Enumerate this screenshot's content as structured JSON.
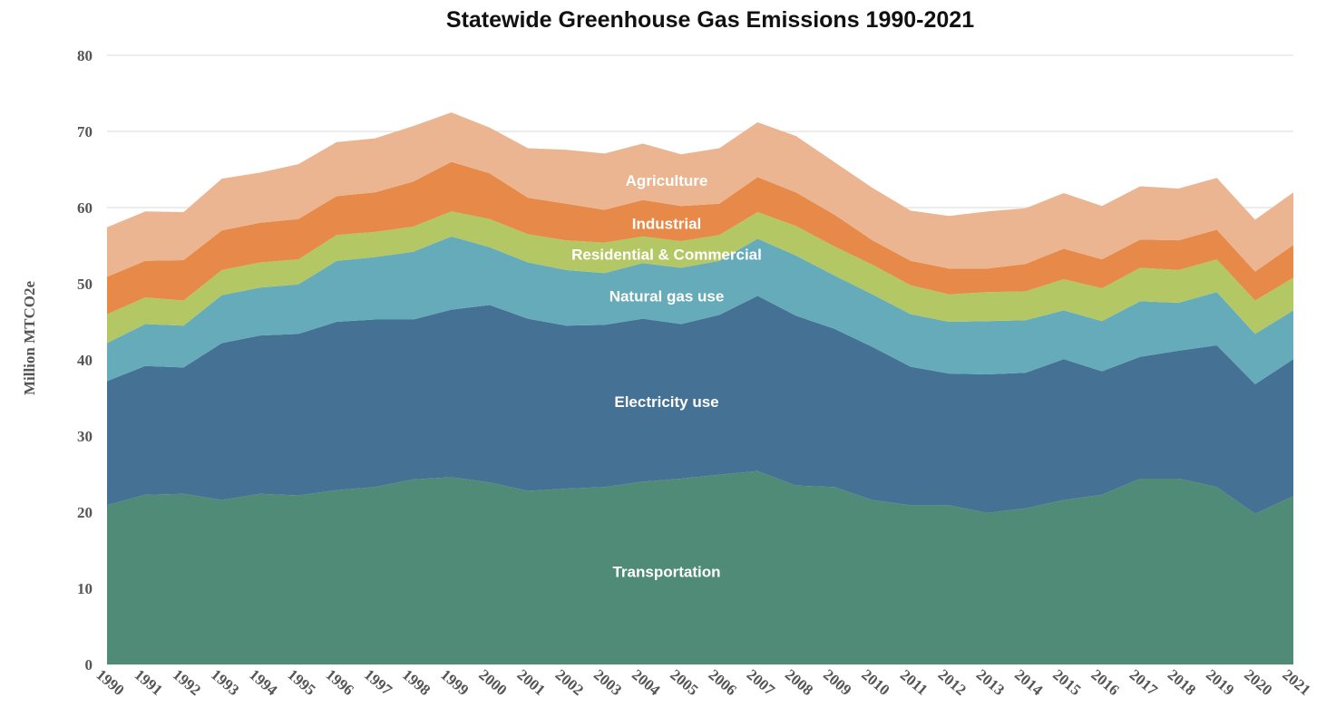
{
  "chart_data": {
    "type": "area",
    "stacked": true,
    "title": "Statewide Greenhouse Gas Emissions 1990-2021",
    "xlabel": "",
    "ylabel": "Million  MTCO2e",
    "ylim": [
      0,
      80
    ],
    "yticks": [
      0,
      10,
      20,
      30,
      40,
      50,
      60,
      70,
      80
    ],
    "grid": true,
    "legend": "none",
    "x": [
      "1990",
      "1991",
      "1992",
      "1993",
      "1994",
      "1995",
      "1996",
      "1997",
      "1998",
      "1999",
      "2000",
      "2001",
      "2002",
      "2003",
      "2004",
      "2005",
      "2006",
      "2007",
      "2008",
      "2009",
      "2010",
      "2011",
      "2012",
      "2013",
      "2014",
      "2015",
      "2016",
      "2017",
      "2018",
      "2019",
      "2020",
      "2021"
    ],
    "series": [
      {
        "name": "Transportation",
        "color": "#4f8b77",
        "values": [
          20.9,
          22.3,
          22.4,
          21.6,
          22.4,
          22.2,
          22.9,
          23.3,
          24.3,
          24.6,
          23.9,
          22.8,
          23.1,
          23.3,
          24.0,
          24.4,
          24.9,
          25.4,
          23.5,
          23.3,
          21.6,
          20.9,
          20.9,
          19.9,
          20.5,
          21.6,
          22.3,
          24.4,
          24.4,
          23.3,
          19.8,
          22.1
        ]
      },
      {
        "name": "Electricity use",
        "color": "#447194",
        "values": [
          16.3,
          16.9,
          16.6,
          20.6,
          20.8,
          21.2,
          22.1,
          22.0,
          21.0,
          22.0,
          23.3,
          22.6,
          21.4,
          21.3,
          21.4,
          20.3,
          21.0,
          23.0,
          22.3,
          20.8,
          20.1,
          18.2,
          17.3,
          18.2,
          17.8,
          18.5,
          16.2,
          16.0,
          16.8,
          18.6,
          17.0,
          18.0
        ]
      },
      {
        "name": "Natural gas use",
        "color": "#65abb9",
        "values": [
          5.0,
          5.5,
          5.5,
          6.3,
          6.3,
          6.5,
          8.0,
          8.2,
          8.9,
          9.6,
          7.6,
          7.4,
          7.3,
          6.8,
          7.3,
          7.4,
          7.1,
          7.5,
          7.9,
          7.0,
          6.9,
          6.9,
          6.8,
          7.0,
          6.9,
          6.4,
          6.6,
          7.3,
          6.3,
          7.0,
          6.6,
          6.4
        ]
      },
      {
        "name": "Residential & Commercial",
        "color": "#b3c864",
        "values": [
          3.8,
          3.5,
          3.3,
          3.3,
          3.3,
          3.3,
          3.4,
          3.3,
          3.3,
          3.3,
          3.7,
          3.7,
          3.9,
          4.0,
          3.5,
          3.5,
          3.4,
          3.5,
          3.9,
          3.8,
          3.9,
          3.8,
          3.6,
          3.8,
          3.8,
          4.1,
          4.3,
          4.4,
          4.3,
          4.3,
          4.4,
          4.3
        ]
      },
      {
        "name": "Industrial",
        "color": "#e68949",
        "values": [
          4.9,
          4.8,
          5.3,
          5.2,
          5.2,
          5.3,
          5.1,
          5.2,
          5.9,
          6.5,
          6.0,
          4.8,
          4.8,
          4.3,
          4.8,
          4.6,
          4.1,
          4.6,
          4.4,
          4.2,
          3.2,
          3.2,
          3.4,
          3.1,
          3.6,
          4.0,
          3.8,
          3.7,
          3.9,
          3.9,
          3.8,
          4.3
        ]
      },
      {
        "name": "Agriculture",
        "color": "#ebb591",
        "values": [
          6.5,
          6.5,
          6.3,
          6.8,
          6.6,
          7.2,
          7.1,
          7.1,
          7.3,
          6.5,
          6.0,
          6.5,
          7.1,
          7.4,
          7.4,
          6.8,
          7.3,
          7.2,
          7.4,
          6.9,
          6.9,
          6.6,
          6.9,
          7.5,
          7.3,
          7.3,
          7.0,
          7.0,
          6.8,
          6.8,
          6.8,
          6.9
        ]
      }
    ]
  }
}
